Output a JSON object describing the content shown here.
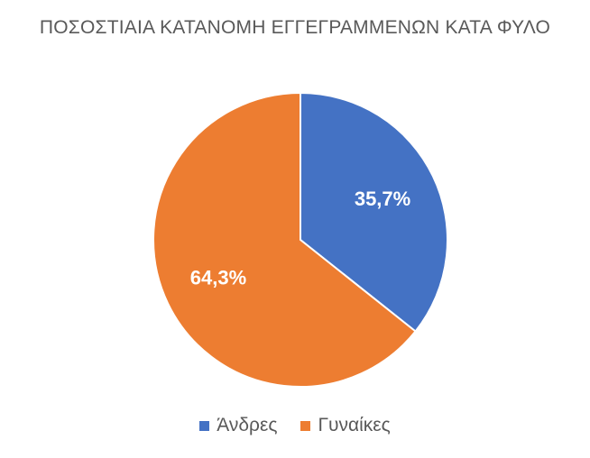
{
  "chart_data": {
    "type": "pie",
    "title": "ΠΟΣΟΣΤΙΑΙΑ ΚΑΤΑΝΟΜΗ ΕΓΓΕΓΡΑΜΜΕΝΩΝ ΚΑΤΑ ΦΥΛΟ",
    "categories": [
      "Άνδρες",
      "Γυναίκες"
    ],
    "values": [
      35.7,
      64.3
    ],
    "data_labels": [
      "35,7%",
      "64,3%"
    ],
    "colors": [
      "#4472C4",
      "#ED7D31"
    ],
    "legend": "bottom"
  }
}
